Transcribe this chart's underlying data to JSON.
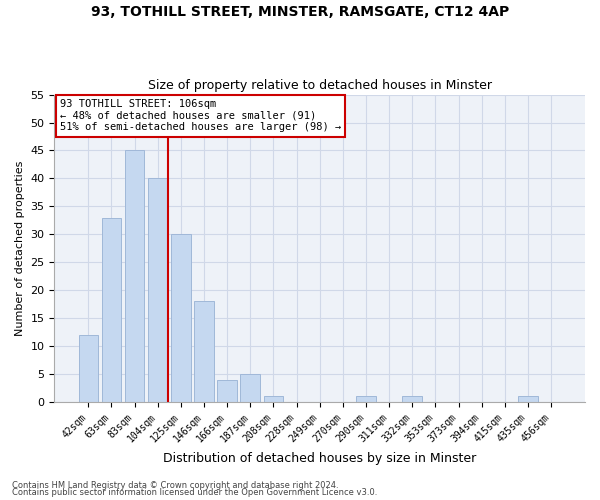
{
  "title1": "93, TOTHILL STREET, MINSTER, RAMSGATE, CT12 4AP",
  "title2": "Size of property relative to detached houses in Minster",
  "xlabel": "Distribution of detached houses by size in Minster",
  "ylabel": "Number of detached properties",
  "categories": [
    "42sqm",
    "63sqm",
    "83sqm",
    "104sqm",
    "125sqm",
    "146sqm",
    "166sqm",
    "187sqm",
    "208sqm",
    "228sqm",
    "249sqm",
    "270sqm",
    "290sqm",
    "311sqm",
    "332sqm",
    "353sqm",
    "373sqm",
    "394sqm",
    "415sqm",
    "435sqm",
    "456sqm"
  ],
  "values": [
    12,
    33,
    45,
    40,
    30,
    18,
    4,
    5,
    1,
    0,
    0,
    0,
    1,
    0,
    1,
    0,
    0,
    0,
    0,
    1,
    0
  ],
  "bar_color": "#c5d8f0",
  "bar_edge_color": "#a0b8d8",
  "grid_color": "#d0d8e8",
  "bg_color": "#eef2f8",
  "fig_color": "#ffffff",
  "vline_bar_index": 3,
  "vline_color": "#cc0000",
  "annotation_text": "93 TOTHILL STREET: 106sqm\n← 48% of detached houses are smaller (91)\n51% of semi-detached houses are larger (98) →",
  "annotation_box_color": "#ffffff",
  "annotation_box_edge": "#cc0000",
  "ylim": [
    0,
    55
  ],
  "yticks": [
    0,
    5,
    10,
    15,
    20,
    25,
    30,
    35,
    40,
    45,
    50,
    55
  ],
  "footer1": "Contains HM Land Registry data © Crown copyright and database right 2024.",
  "footer2": "Contains public sector information licensed under the Open Government Licence v3.0."
}
